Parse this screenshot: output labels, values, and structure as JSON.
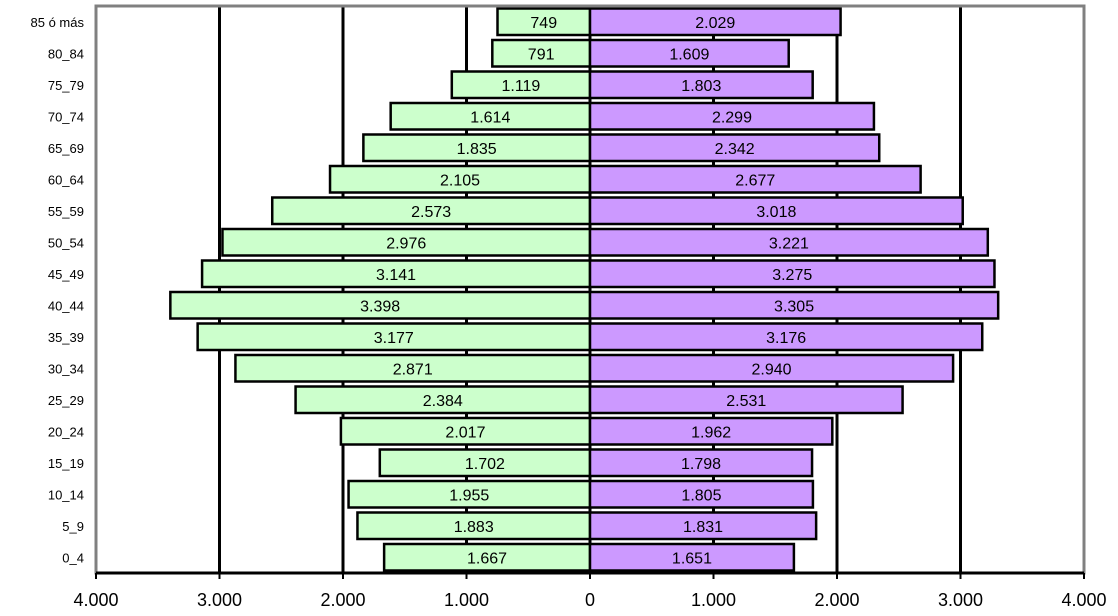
{
  "chart_data": {
    "type": "bar",
    "orientation": "horizontal",
    "layout": "population-pyramid",
    "categories": [
      "85 ó más",
      "80_84",
      "75_79",
      "70_74",
      "65_69",
      "60_64",
      "55_59",
      "50_54",
      "45_49",
      "40_44",
      "35_39",
      "30_34",
      "25_29",
      "20_24",
      "15_19",
      "10_14",
      "5_9",
      "0_4"
    ],
    "series": [
      {
        "side": "left",
        "color": "#ccffcc",
        "values": [
          749,
          791,
          1119,
          1614,
          1835,
          2105,
          2573,
          2976,
          3141,
          3398,
          3177,
          2871,
          2384,
          2017,
          1702,
          1955,
          1883,
          1667
        ],
        "labels": [
          "749",
          "791",
          "1.119",
          "1.614",
          "1.835",
          "2.105",
          "2.573",
          "2.976",
          "3.141",
          "3.398",
          "3.177",
          "2.871",
          "2.384",
          "2.017",
          "1.702",
          "1.955",
          "1.883",
          "1.667"
        ]
      },
      {
        "side": "right",
        "color": "#cc99ff",
        "values": [
          2029,
          1609,
          1803,
          2299,
          2342,
          2677,
          3018,
          3221,
          3275,
          3305,
          3176,
          2940,
          2531,
          1962,
          1798,
          1805,
          1831,
          1651
        ],
        "labels": [
          "2.029",
          "1.609",
          "1.803",
          "2.299",
          "2.342",
          "2.677",
          "3.018",
          "3.221",
          "3.275",
          "3.305",
          "3.176",
          "2.940",
          "2.531",
          "1.962",
          "1.798",
          "1.805",
          "1.831",
          "1.651"
        ]
      }
    ],
    "xlim": [
      -4000,
      4000
    ],
    "x_ticks": [
      -4000,
      -3000,
      -2000,
      -1000,
      0,
      1000,
      2000,
      3000,
      4000
    ],
    "x_tick_labels": [
      "4.000",
      "3.000",
      "2.000",
      "1.000",
      "0",
      "1.000",
      "2.000",
      "3.000",
      "4.000"
    ],
    "grid": "vertical",
    "legend": "none",
    "title": "",
    "xlabel": "",
    "ylabel": ""
  }
}
